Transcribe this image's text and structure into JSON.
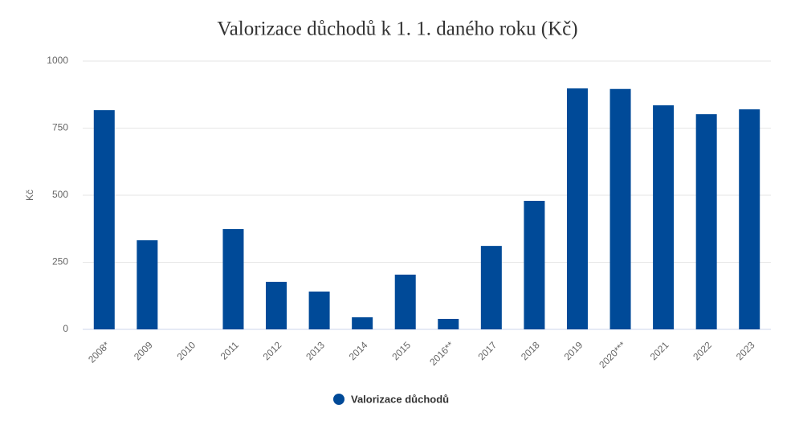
{
  "chart_data": {
    "type": "bar",
    "title": "Valorizace důchodů k 1. 1. daného roku (Kč)",
    "y_label": "Kč",
    "categories": [
      "2008*",
      "2009",
      "2010",
      "2011",
      "2012",
      "2013",
      "2014",
      "2015",
      "2016**",
      "2017",
      "2018",
      "2019",
      "2020***",
      "2021",
      "2022",
      "2023"
    ],
    "series": [
      {
        "name": "Valorizace důchodů",
        "color": "#004a98",
        "values": [
          817,
          332,
          0,
          374,
          177,
          141,
          45,
          204,
          39,
          311,
          479,
          898,
          896,
          835,
          802,
          820
        ]
      }
    ],
    "ylim": [
      0,
      1000
    ],
    "yticks": [
      0,
      250,
      500,
      750,
      1000
    ],
    "grid": true,
    "legend": "bottom"
  }
}
